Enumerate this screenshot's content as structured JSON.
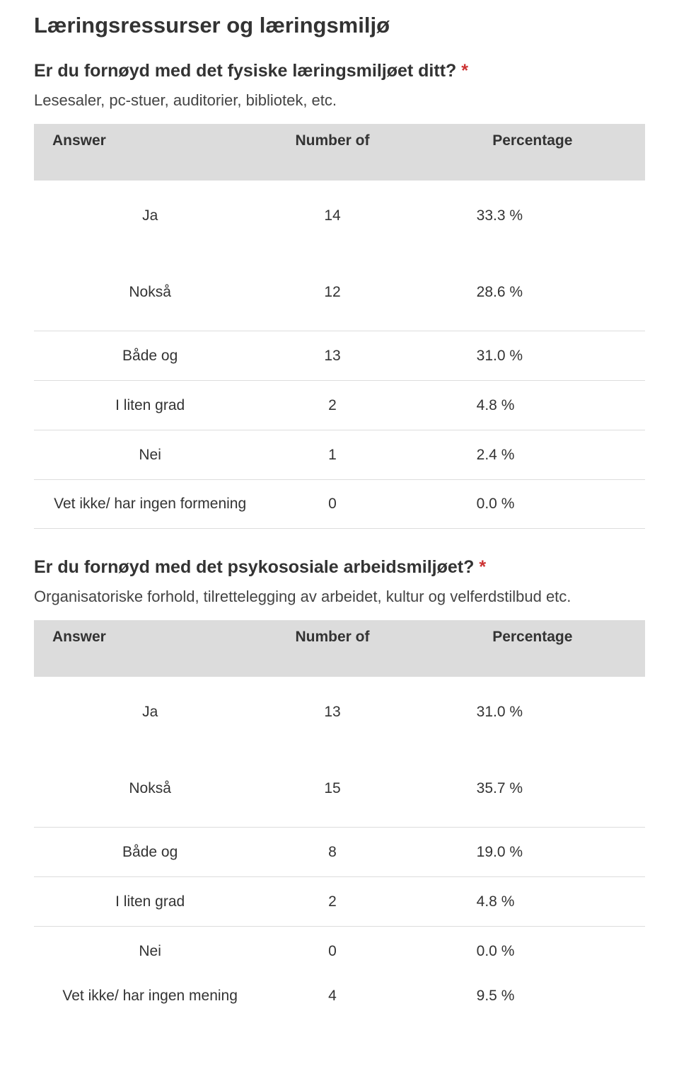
{
  "page_title": "Læringsressurser og læringsmiljø",
  "sections": [
    {
      "question": "Er du fornøyd med det fysiske læringsmiljøet ditt?",
      "required_mark": "*",
      "subtitle": "Lesesaler, pc-stuer, auditorier, bibliotek, etc.",
      "headers": {
        "answer": "Answer",
        "number": "Number of",
        "percent": "Percentage"
      },
      "first_row": {
        "answer": "Ja",
        "number": "14",
        "percent": "33.3 %"
      },
      "rows": [
        {
          "answer": "Nokså",
          "number": "12",
          "percent": "28.6 %",
          "group_start": true
        },
        {
          "answer": "Både og",
          "number": "13",
          "percent": "31.0 %"
        },
        {
          "answer": "I liten grad",
          "number": "2",
          "percent": "4.8 %"
        },
        {
          "answer": "Nei",
          "number": "1",
          "percent": "2.4 %"
        },
        {
          "answer": "Vet ikke/ har ingen formening",
          "number": "0",
          "percent": "0.0 %"
        }
      ]
    },
    {
      "question": "Er du fornøyd med det psykososiale arbeidsmiljøet?",
      "required_mark": "*",
      "subtitle": "Organisatoriske forhold, tilrettelegging av arbeidet, kultur og velferdstilbud etc.",
      "headers": {
        "answer": "Answer",
        "number": "Number of",
        "percent": "Percentage"
      },
      "first_row": {
        "answer": "Ja",
        "number": "13",
        "percent": "31.0 %"
      },
      "rows": [
        {
          "answer": "Nokså",
          "number": "15",
          "percent": "35.7 %",
          "group_start": true
        },
        {
          "answer": "Både og",
          "number": "8",
          "percent": "19.0 %"
        },
        {
          "answer": "I liten grad",
          "number": "2",
          "percent": "4.8 %"
        },
        {
          "answer": "Nei",
          "number": "0",
          "percent": "0.0 %"
        },
        {
          "answer": "Vet ikke/ har ingen mening",
          "number": "4",
          "percent": "9.5 %",
          "last_unbounded": true
        }
      ]
    }
  ]
}
